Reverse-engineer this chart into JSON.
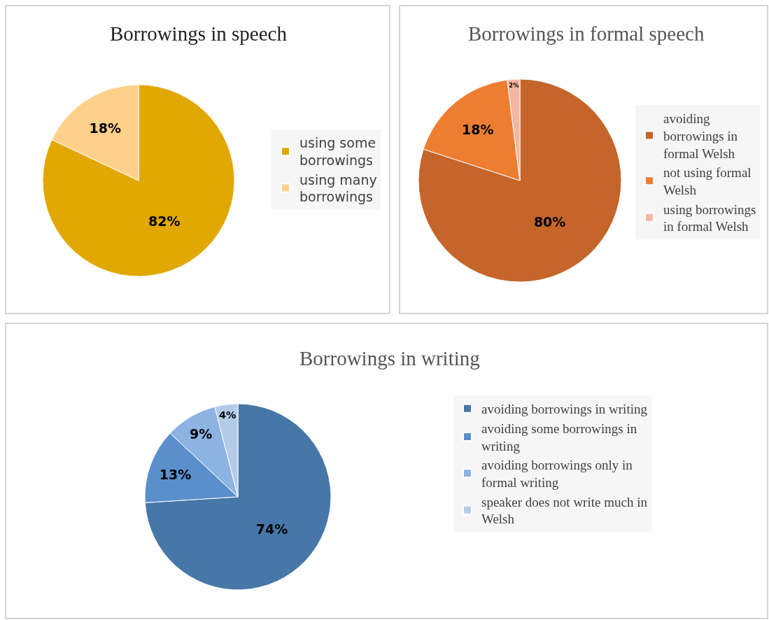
{
  "chart_data": [
    {
      "type": "pie",
      "title": "Borrowings in speech",
      "categories": [
        "using some borrowings",
        "using many borrowings"
      ],
      "values": [
        82,
        18
      ],
      "colors": [
        "#e0a800",
        "#ffd08a"
      ],
      "value_labels": [
        "82%",
        "18%"
      ],
      "legend": "right"
    },
    {
      "type": "pie",
      "title": "Borrowings in formal speech",
      "categories": [
        "avoiding borrowings in formal Welsh",
        "not using formal Welsh",
        "using borrowings in formal Welsh"
      ],
      "values": [
        80,
        18,
        2
      ],
      "colors": [
        "#c5652a",
        "#ed7d31",
        "#f4b6a0"
      ],
      "value_labels": [
        "80%",
        "18%",
        "2%"
      ],
      "legend": "right"
    },
    {
      "type": "pie",
      "title": "Borrowings in writing",
      "categories": [
        "avoiding borrowings in writing",
        "avoiding some borrowings in writing",
        "avoiding borrowings only in formal writing",
        "speaker does not write much in Welsh"
      ],
      "values": [
        74,
        13,
        9,
        4
      ],
      "colors": [
        "#4677a8",
        "#5b8fcb",
        "#8db3e2",
        "#b4cbe8"
      ],
      "value_labels": [
        "74%",
        "13%",
        "9%",
        "4%"
      ],
      "legend": "right"
    }
  ]
}
